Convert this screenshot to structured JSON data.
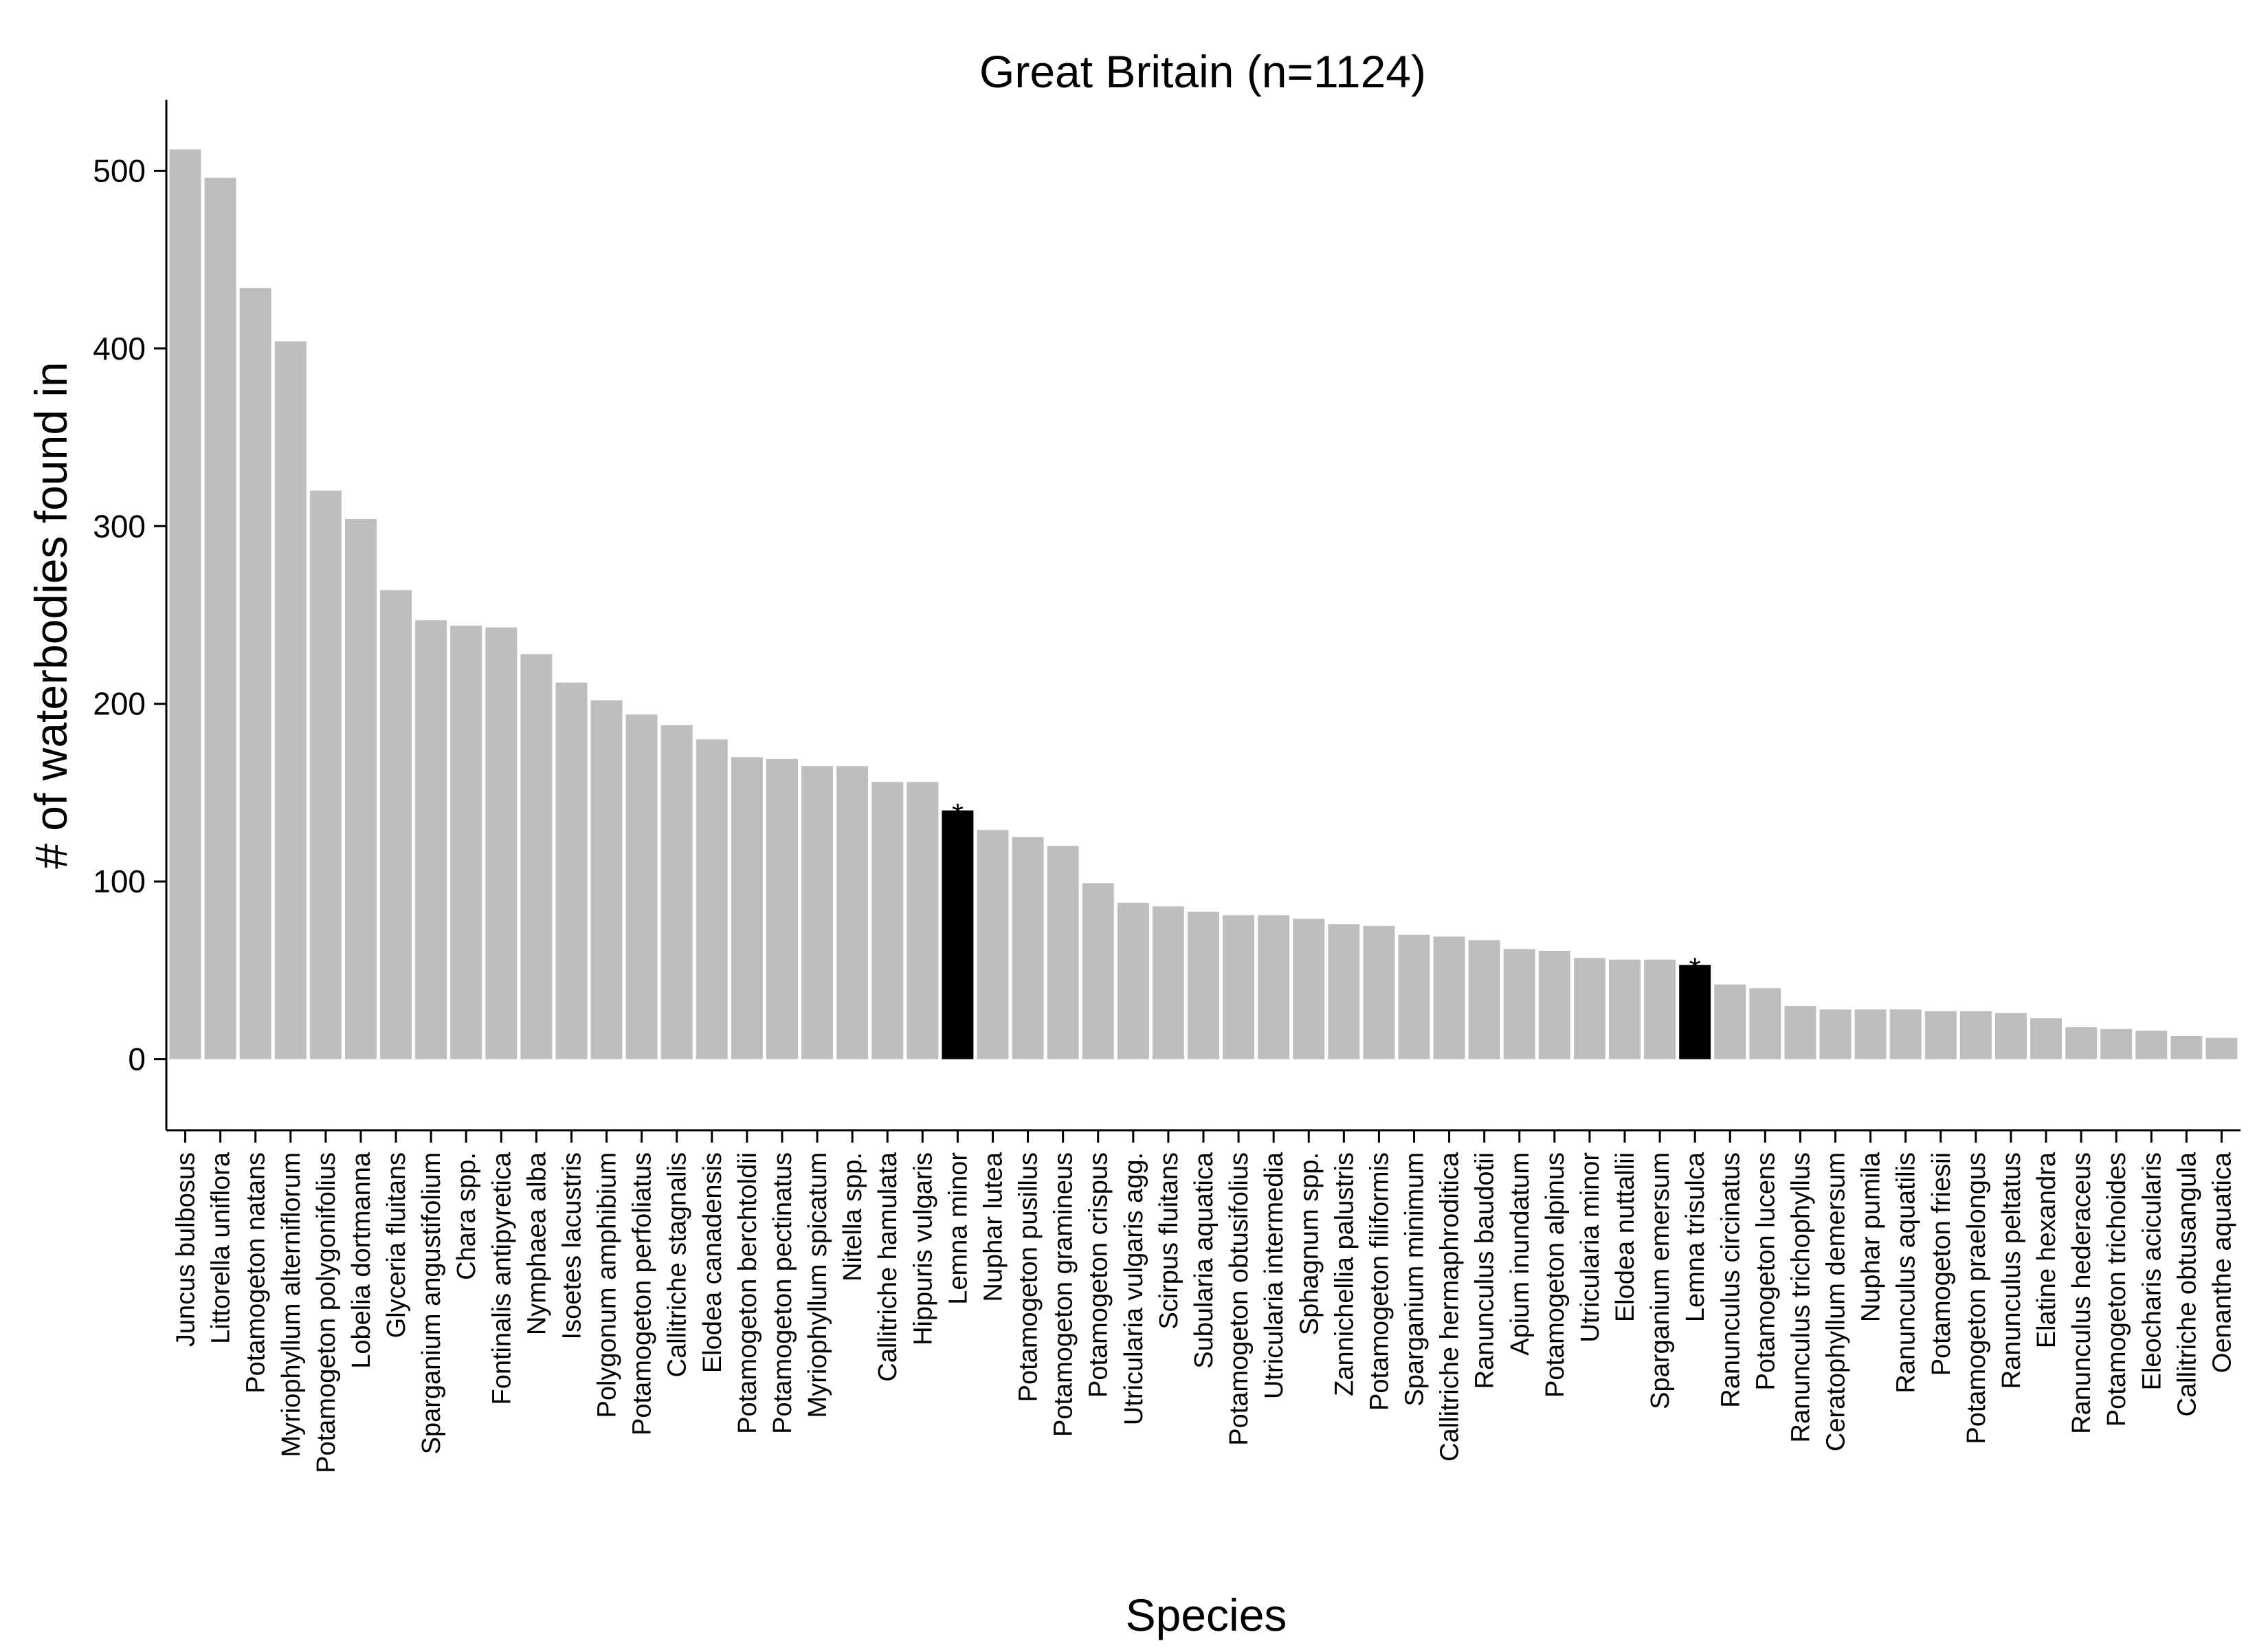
{
  "chart_data": {
    "type": "bar",
    "title": "Great Britain (n=1124)",
    "xlabel": "Species",
    "ylabel": "# of waterbodies found in",
    "ylim": [
      -40,
      540
    ],
    "yticks": [
      0,
      100,
      200,
      300,
      400,
      500
    ],
    "grid": false,
    "colors": {
      "default": "#bebebe",
      "highlight": "#000000"
    },
    "highlight_marker": "*",
    "categories": [
      "Juncus bulbosus",
      "Littorella uniflora",
      "Potamogeton natans",
      "Myriophyllum alterniflorum",
      "Potamogeton polygonifolius",
      "Lobelia dortmanna",
      "Glyceria fluitans",
      "Sparganium angustifolium",
      "Chara spp.",
      "Fontinalis antipyretica",
      "Nymphaea alba",
      "Isoetes lacustris",
      "Polygonum amphibium",
      "Potamogeton perfoliatus",
      "Callitriche stagnalis",
      "Elodea canadensis",
      "Potamogeton berchtoldii",
      "Potamogeton pectinatus",
      "Myriophyllum spicatum",
      "Nitella spp.",
      "Callitriche hamulata",
      "Hippuris vulgaris",
      "Lemna minor",
      "Nuphar lutea",
      "Potamogeton pusillus",
      "Potamogeton gramineus",
      "Potamogeton crispus",
      "Utricularia vulgaris agg.",
      "Scirpus fluitans",
      "Subularia aquatica",
      "Potamogeton obtusifolius",
      "Utricularia intermedia",
      "Sphagnum spp.",
      "Zannichellia palustris",
      "Potamogeton filiformis",
      "Sparganium minimum",
      "Callitriche hermaphroditica",
      "Ranunculus baudotii",
      "Apium inundatum",
      "Potamogeton alpinus",
      "Utricularia minor",
      "Elodea nuttallii",
      "Sparganium emersum",
      "Lemna trisulca",
      "Ranunculus circinatus",
      "Potamogeton lucens",
      "Ranunculus trichophyllus",
      "Ceratophyllum demersum",
      "Nuphar pumila",
      "Ranunculus aquatilis",
      "Potamogeton friesii",
      "Potamogeton praelongus",
      "Ranunculus peltatus",
      "Elatine hexandra",
      "Ranunculus hederaceus",
      "Potamogeton trichoides",
      "Eleocharis acicularis",
      "Callitriche obtusangula",
      "Oenanthe aquatica"
    ],
    "values": [
      512,
      496,
      434,
      404,
      320,
      304,
      264,
      247,
      244,
      243,
      228,
      212,
      202,
      194,
      188,
      180,
      170,
      169,
      165,
      165,
      156,
      156,
      140,
      129,
      125,
      120,
      99,
      88,
      86,
      83,
      81,
      81,
      79,
      76,
      75,
      70,
      69,
      67,
      62,
      61,
      57,
      56,
      56,
      53,
      42,
      40,
      30,
      28,
      28,
      28,
      27,
      27,
      26,
      23,
      18,
      17,
      16,
      13,
      12
    ],
    "highlighted": [
      "Lemna minor",
      "Lemna trisulca"
    ]
  }
}
